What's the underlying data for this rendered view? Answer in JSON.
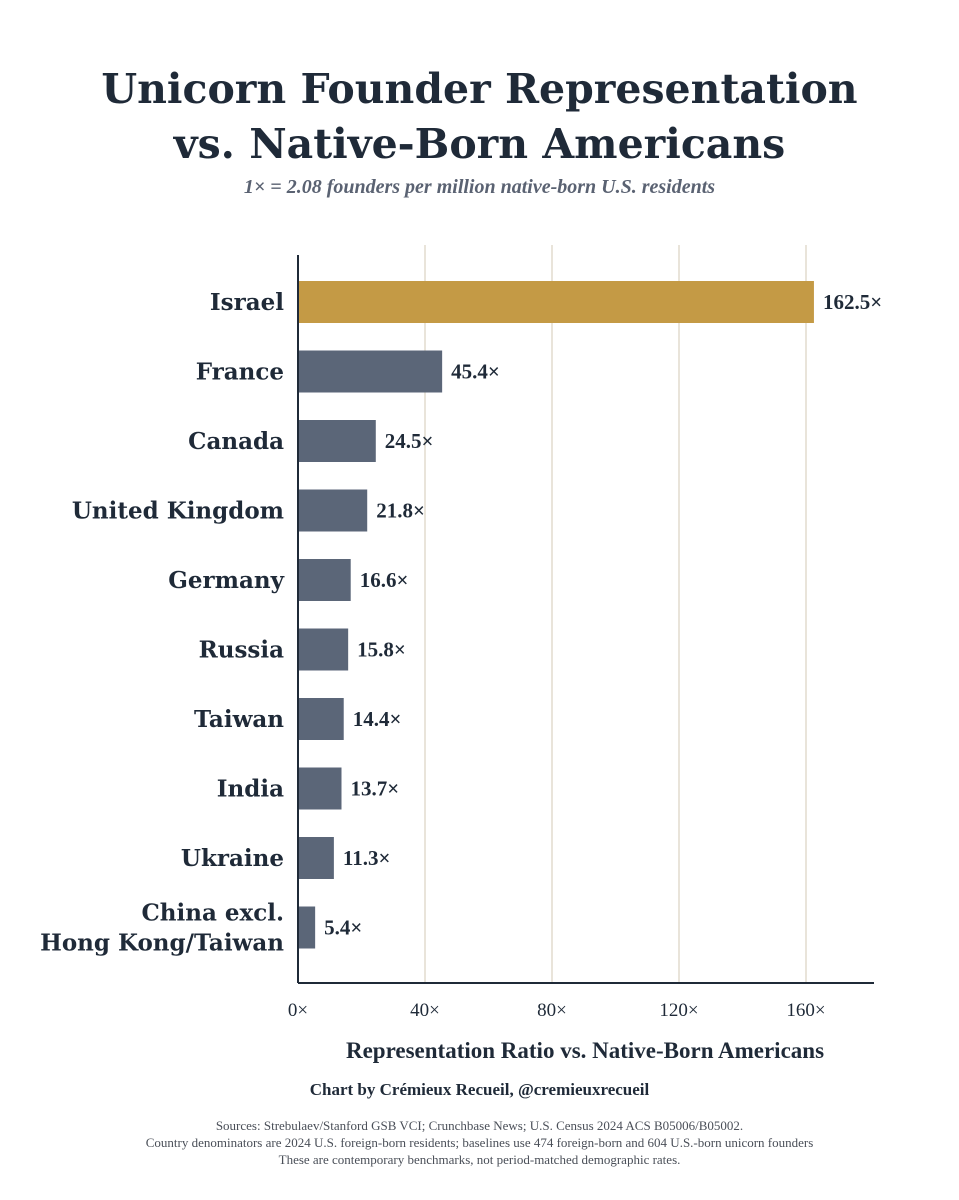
{
  "title_lines": [
    "Unicorn Founder Representation",
    "vs. Native-Born Americans"
  ],
  "subtitle": "1× = 2.08 founders per million native-born U.S. residents",
  "credit": "Chart by Crémieux Recueil, @cremieuxrecueil",
  "notes": [
    "Sources: Strebulaev/Stanford GSB VCI; Crunchbase News; U.S. Census 2024 ACS B05006/B05002.",
    "Country denominators are 2024 U.S. foreign-born residents; baselines use 474 foreign-born and 604 U.S.-born unicorn founders",
    "These are contemporary benchmarks, not period-matched demographic rates."
  ],
  "colors": {
    "highlight": "#c49a45",
    "bar": "#5b6678",
    "grid": "#e2dccd",
    "axis": "#1f2a38",
    "text": "#1f2a38"
  },
  "chart_data": {
    "type": "bar",
    "orientation": "horizontal",
    "title": "Unicorn Founder Representation vs. Native-Born Americans",
    "subtitle": "1× = 2.08 founders per million native-born U.S. residents",
    "xlabel": "Representation Ratio vs. Native-Born Americans",
    "categories": [
      [
        "Israel"
      ],
      [
        "France"
      ],
      [
        "Canada"
      ],
      [
        "United Kingdom"
      ],
      [
        "Germany"
      ],
      [
        "Russia"
      ],
      [
        "Taiwan"
      ],
      [
        "India"
      ],
      [
        "Ukraine"
      ],
      [
        "China excl.",
        "Hong Kong/Taiwan"
      ]
    ],
    "values": [
      162.5,
      45.4,
      24.5,
      21.8,
      16.6,
      15.8,
      14.4,
      13.7,
      11.3,
      5.4
    ],
    "value_labels": [
      "162.5×",
      "45.4×",
      "24.5×",
      "21.8×",
      "16.6×",
      "15.8×",
      "14.4×",
      "13.7×",
      "11.3×",
      "5.4×"
    ],
    "highlight_index": 0,
    "xticks": [
      0,
      40,
      80,
      120,
      160
    ],
    "xtick_labels": [
      "0×",
      "40×",
      "80×",
      "120×",
      "160×"
    ],
    "xlim": [
      0,
      180
    ],
    "grid": "vertical"
  }
}
